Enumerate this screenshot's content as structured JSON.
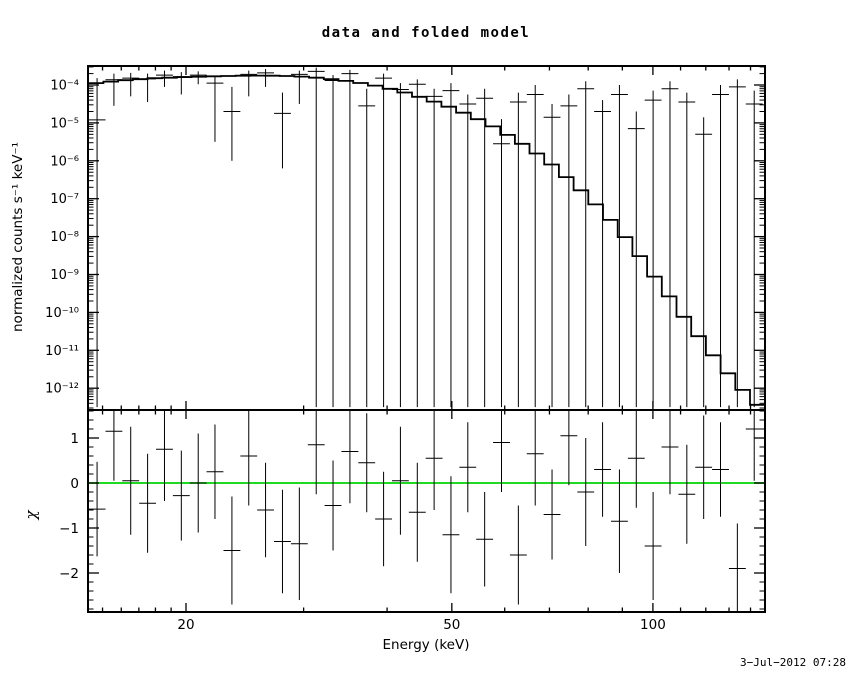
{
  "chart_data": {
    "type": "line",
    "subtype": "xspec-data-and-folded-model-with-residuals",
    "title": "data and folded model",
    "xlabel": "Energy (keV)",
    "ylabel_top": "normalized counts s⁻¹ keV⁻¹",
    "ylabel_bottom": "χ",
    "timestamp": "3−Jul−2012 07:28",
    "x_scale": "log",
    "x_range_kev": [
      14.3,
      147
    ],
    "x_major_ticks": [
      20,
      50,
      100
    ],
    "x_minor_ticks": [
      15,
      16,
      17,
      18,
      19,
      30,
      40,
      60,
      70,
      80,
      90,
      110,
      120,
      130,
      140
    ],
    "top_panel": {
      "y_scale": "log",
      "y_range_log10": [
        -12.58,
        -3.5
      ],
      "y_tick_exponents": [
        -4,
        -5,
        -6,
        -7,
        -8,
        -9,
        -10,
        -11,
        -12
      ],
      "grid": false
    },
    "bottom_panel": {
      "y_range": [
        -2.87,
        1.62
      ],
      "y_major_ticks": [
        -2,
        -1,
        0,
        1
      ],
      "y_minor_step": 0.2,
      "zero_line_color": "#00d500"
    },
    "model": {
      "name": "folded model (stepped histogram)",
      "energy_kev": [
        14.3,
        16,
        18,
        20,
        22,
        24,
        26,
        28,
        30,
        32,
        34,
        36,
        38,
        40,
        43,
        46,
        50,
        54,
        58,
        62,
        66,
        70,
        75,
        80,
        85,
        90,
        95,
        100,
        105,
        110,
        115,
        120,
        125,
        130,
        135,
        140,
        147
      ],
      "log10_flux": [
        -3.97,
        -3.88,
        -3.82,
        -3.79,
        -3.77,
        -3.755,
        -3.75,
        -3.76,
        -3.78,
        -3.82,
        -3.87,
        -3.93,
        -4.0,
        -4.08,
        -4.22,
        -4.38,
        -4.6,
        -4.85,
        -5.12,
        -5.42,
        -5.72,
        -6.05,
        -6.5,
        -6.95,
        -7.42,
        -7.92,
        -8.45,
        -9.0,
        -9.5,
        -10.0,
        -10.45,
        -10.88,
        -11.28,
        -11.64,
        -11.97,
        -12.27,
        -12.62
      ]
    },
    "data_points": [
      {
        "e": 14.72,
        "logf": -4.92,
        "hi": -3.82,
        "lo": -12.5
      },
      {
        "e": 15.6,
        "logf": -3.86,
        "hi": -3.7,
        "lo": -4.55
      },
      {
        "e": 16.53,
        "logf": -3.82,
        "hi": -3.68,
        "lo": -4.3
      },
      {
        "e": 17.52,
        "logf": -3.84,
        "hi": -3.7,
        "lo": -4.45
      },
      {
        "e": 18.57,
        "logf": -3.74,
        "hi": -3.62,
        "lo": -4.05
      },
      {
        "e": 19.68,
        "logf": -3.78,
        "hi": -3.66,
        "lo": -4.25
      },
      {
        "e": 20.86,
        "logf": -3.74,
        "hi": -3.64,
        "lo": -3.98
      },
      {
        "e": 22.1,
        "logf": -3.95,
        "hi": -3.75,
        "lo": -5.5
      },
      {
        "e": 23.43,
        "logf": -4.7,
        "hi": -4.05,
        "lo": -6.0
      },
      {
        "e": 24.83,
        "logf": -3.72,
        "hi": -3.62,
        "lo": -4.3
      },
      {
        "e": 26.31,
        "logf": -3.68,
        "hi": -3.58,
        "lo": -4.05
      },
      {
        "e": 27.89,
        "logf": -4.75,
        "hi": -4.2,
        "lo": -6.2
      },
      {
        "e": 29.56,
        "logf": -3.72,
        "hi": -3.62,
        "lo": -4.5
      },
      {
        "e": 31.33,
        "logf": -3.64,
        "hi": -3.54,
        "lo": -12.5
      },
      {
        "e": 33.2,
        "logf": -3.88,
        "hi": -3.74,
        "lo": -12.5
      },
      {
        "e": 35.19,
        "logf": -3.7,
        "hi": -3.6,
        "lo": -12.5
      },
      {
        "e": 37.29,
        "logf": -4.55,
        "hi": -4.1,
        "lo": -12.5
      },
      {
        "e": 39.52,
        "logf": -3.82,
        "hi": -3.7,
        "lo": -12.5
      },
      {
        "e": 41.88,
        "logf": -4.12,
        "hi": -3.95,
        "lo": -12.5
      },
      {
        "e": 44.39,
        "logf": -3.98,
        "hi": -3.85,
        "lo": -12.5
      },
      {
        "e": 47.04,
        "logf": -4.3,
        "hi": -4.1,
        "lo": -12.5
      },
      {
        "e": 49.85,
        "logf": -4.15,
        "hi": -3.95,
        "lo": -12.5
      },
      {
        "e": 52.83,
        "logf": -4.5,
        "hi": -4.25,
        "lo": -12.5
      },
      {
        "e": 55.99,
        "logf": -4.35,
        "hi": -4.1,
        "lo": -12.5
      },
      {
        "e": 59.34,
        "logf": -5.55,
        "hi": -4.9,
        "lo": -12.5
      },
      {
        "e": 62.89,
        "logf": -4.45,
        "hi": -4.2,
        "lo": -12.5
      },
      {
        "e": 66.65,
        "logf": -4.25,
        "hi": -4.0,
        "lo": -12.5
      },
      {
        "e": 70.63,
        "logf": -4.85,
        "hi": -4.5,
        "lo": -12.5
      },
      {
        "e": 74.85,
        "logf": -4.55,
        "hi": -4.25,
        "lo": -12.5
      },
      {
        "e": 79.33,
        "logf": -4.1,
        "hi": -3.9,
        "lo": -12.5
      },
      {
        "e": 84.07,
        "logf": -4.7,
        "hi": -4.4,
        "lo": -12.5
      },
      {
        "e": 89.1,
        "logf": -4.25,
        "hi": -4.0,
        "lo": -12.5
      },
      {
        "e": 94.43,
        "logf": -5.15,
        "hi": -4.7,
        "lo": -12.5
      },
      {
        "e": 100.07,
        "logf": -4.4,
        "hi": -4.15,
        "lo": -12.5
      },
      {
        "e": 106.06,
        "logf": -4.1,
        "hi": -3.9,
        "lo": -12.5
      },
      {
        "e": 112.4,
        "logf": -4.45,
        "hi": -4.2,
        "lo": -12.5
      },
      {
        "e": 119.12,
        "logf": -5.3,
        "hi": -4.85,
        "lo": -12.5
      },
      {
        "e": 126.24,
        "logf": -4.25,
        "hi": -4.0,
        "lo": -12.5
      },
      {
        "e": 133.79,
        "logf": -4.05,
        "hi": -3.85,
        "lo": -12.5
      },
      {
        "e": 141.79,
        "logf": -4.5,
        "hi": -4.15,
        "lo": -12.5
      }
    ],
    "residuals": [
      {
        "e": 14.72,
        "chi": -0.58,
        "err": 1.05
      },
      {
        "e": 15.6,
        "chi": 1.15,
        "err": 1.1
      },
      {
        "e": 16.53,
        "chi": 0.05,
        "err": 1.2
      },
      {
        "e": 17.52,
        "chi": -0.45,
        "err": 1.1
      },
      {
        "e": 18.57,
        "chi": 0.75,
        "err": 1.15
      },
      {
        "e": 19.68,
        "chi": -0.28,
        "err": 1.0
      },
      {
        "e": 20.86,
        "chi": 0.0,
        "err": 1.1
      },
      {
        "e": 22.1,
        "chi": 0.25,
        "err": 1.05
      },
      {
        "e": 23.43,
        "chi": -1.5,
        "err": 1.2
      },
      {
        "e": 24.83,
        "chi": 0.6,
        "err": 1.1
      },
      {
        "e": 26.31,
        "chi": -0.6,
        "err": 1.05
      },
      {
        "e": 27.89,
        "chi": -1.3,
        "err": 1.15
      },
      {
        "e": 29.56,
        "chi": -1.35,
        "err": 1.25
      },
      {
        "e": 31.33,
        "chi": 0.85,
        "err": 1.1
      },
      {
        "e": 33.2,
        "chi": -0.5,
        "err": 1.0
      },
      {
        "e": 35.19,
        "chi": 0.7,
        "err": 1.15
      },
      {
        "e": 37.29,
        "chi": 0.45,
        "err": 1.1
      },
      {
        "e": 39.52,
        "chi": -0.8,
        "err": 1.05
      },
      {
        "e": 41.88,
        "chi": 0.05,
        "err": 1.2
      },
      {
        "e": 44.39,
        "chi": -0.65,
        "err": 1.1
      },
      {
        "e": 47.04,
        "chi": 0.55,
        "err": 1.15
      },
      {
        "e": 49.85,
        "chi": -1.15,
        "err": 1.3
      },
      {
        "e": 52.83,
        "chi": 0.35,
        "err": 1.0
      },
      {
        "e": 55.99,
        "chi": -1.25,
        "err": 1.05
      },
      {
        "e": 59.34,
        "chi": 0.9,
        "err": 1.1
      },
      {
        "e": 62.89,
        "chi": -1.6,
        "err": 1.1
      },
      {
        "e": 66.65,
        "chi": 0.65,
        "err": 1.15
      },
      {
        "e": 70.63,
        "chi": -0.7,
        "err": 1.0
      },
      {
        "e": 74.85,
        "chi": 1.05,
        "err": 1.1
      },
      {
        "e": 79.33,
        "chi": -0.2,
        "err": 1.2
      },
      {
        "e": 84.07,
        "chi": 0.3,
        "err": 1.05
      },
      {
        "e": 89.1,
        "chi": -0.85,
        "err": 1.15
      },
      {
        "e": 94.43,
        "chi": 0.55,
        "err": 1.1
      },
      {
        "e": 100.07,
        "chi": -1.4,
        "err": 1.2
      },
      {
        "e": 106.06,
        "chi": 0.8,
        "err": 1.05
      },
      {
        "e": 112.4,
        "chi": -0.25,
        "err": 1.1
      },
      {
        "e": 119.12,
        "chi": 0.35,
        "err": 1.15
      },
      {
        "e": 126.24,
        "chi": 0.3,
        "err": 1.05
      },
      {
        "e": 133.79,
        "chi": -1.9,
        "err": 1.0
      },
      {
        "e": 141.79,
        "chi": 1.2,
        "err": 1.15
      }
    ],
    "colors": {
      "data": "#000000",
      "model": "#000000",
      "zero_line": "#00d500",
      "background": "#ffffff"
    }
  }
}
